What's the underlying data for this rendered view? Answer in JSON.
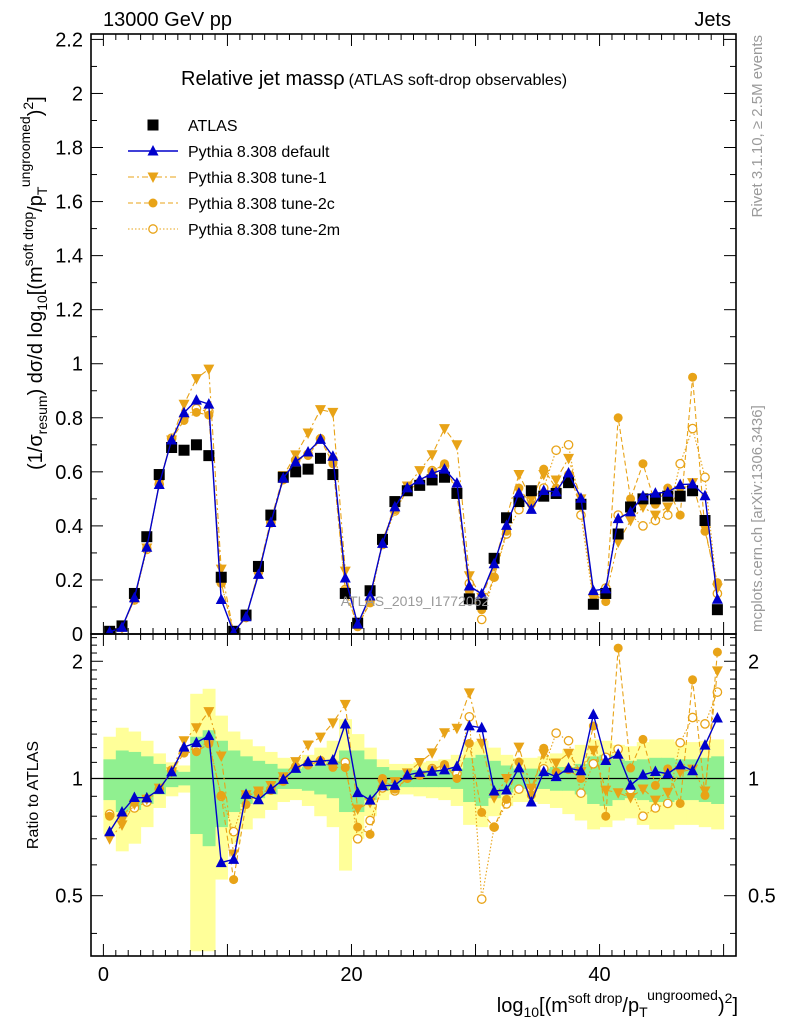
{
  "header": {
    "energy_label": "13000 GeV pp",
    "category_label": "Jets"
  },
  "side_labels": {
    "rivet": "Rivet 3.1.10, ≥ 2.5M events",
    "mcplots": "mcplots.cern.ch [arXiv:1306.3436]"
  },
  "chart_data": [
    {
      "type": "line",
      "title": "Relative jet massρ",
      "subtitle": "(ATLAS soft-drop observables)",
      "watermark": "ATLAS_2019_I1772062",
      "ylabel": "(1/σ_resum) dσ/d log10[(m^soft drop/pT^ungroomed)^2]",
      "xlim": [
        -1,
        51
      ],
      "ylim": [
        0,
        2.22
      ],
      "yticks": [
        "0",
        "0.2",
        "0.4",
        "0.6",
        "0.8",
        "1",
        "1.2",
        "1.4",
        "1.6",
        "1.8",
        "2",
        "2.2"
      ],
      "legend_position": "top-left",
      "series": [
        {
          "name": "ATLAS",
          "marker": "square",
          "color": "#000000",
          "x": [
            0.5,
            1.5,
            2.5,
            3.5,
            4.5,
            5.5,
            6.5,
            7.5,
            8.5,
            9.5,
            10.5,
            11.5,
            12.5,
            13.5,
            14.5,
            15.5,
            16.5,
            17.5,
            18.5,
            19.5,
            20.5,
            21.5,
            22.5,
            23.5,
            24.5,
            25.5,
            26.5,
            27.5,
            28.5,
            29.5,
            30.5,
            31.5,
            32.5,
            33.5,
            34.5,
            35.5,
            36.5,
            37.5,
            38.5,
            39.5,
            40.5,
            41.5,
            42.5,
            43.5,
            44.5,
            45.5,
            46.5,
            47.5,
            48.5,
            49.5
          ],
          "y": [
            0.01,
            0.03,
            0.15,
            0.36,
            0.59,
            0.69,
            0.68,
            0.7,
            0.66,
            0.21,
            0.01,
            0.07,
            0.25,
            0.44,
            0.58,
            0.6,
            0.61,
            0.65,
            0.59,
            0.15,
            0.04,
            0.16,
            0.35,
            0.49,
            0.53,
            0.55,
            0.57,
            0.58,
            0.52,
            0.13,
            0.11,
            0.28,
            0.43,
            0.49,
            0.53,
            0.51,
            0.52,
            0.56,
            0.48,
            0.11,
            0.15,
            0.37,
            0.47,
            0.5,
            0.5,
            0.51,
            0.51,
            0.53,
            0.42,
            0.09
          ]
        },
        {
          "name": "Pythia 8.308 default",
          "marker": "triangle",
          "color": "#0000cc",
          "x": [
            0.5,
            1.5,
            2.5,
            3.5,
            4.5,
            5.5,
            6.5,
            7.5,
            8.5,
            9.5,
            10.5,
            11.5,
            12.5,
            13.5,
            14.5,
            15.5,
            16.5,
            17.5,
            18.5,
            19.5,
            20.5,
            21.5,
            22.5,
            23.5,
            24.5,
            25.5,
            26.5,
            27.5,
            28.5,
            29.5,
            30.5,
            31.5,
            32.5,
            33.5,
            34.5,
            35.5,
            36.5,
            37.5,
            38.5,
            39.5,
            40.5,
            41.5,
            42.5,
            43.5,
            44.5,
            45.5,
            46.5,
            47.5,
            48.5,
            49.5
          ],
          "y": [
            0.0073,
            0.0246,
            0.134,
            0.3211,
            0.5532,
            0.7176,
            0.8186,
            0.8654,
            0.8506,
            0.1277,
            0.0062,
            0.0637,
            0.2205,
            0.4127,
            0.5768,
            0.637,
            0.6734,
            0.7202,
            0.6579,
            0.207,
            0.0368,
            0.1408,
            0.3353,
            0.4705,
            0.5406,
            0.5703,
            0.5943,
            0.6102,
            0.5584,
            0.1775,
            0.1485,
            0.26,
            0.4017,
            0.5218,
            0.4611,
            0.5309,
            0.5257,
            0.5955,
            0.5024,
            0.1606,
            0.1668,
            0.4269,
            0.4517,
            0.5108,
            0.5211,
            0.5245,
            0.5528,
            0.5548,
            0.5115,
            0.1287
          ]
        },
        {
          "name": "Pythia 8.308 tune-1",
          "marker": "triangle-down",
          "color": "#e8a317",
          "x": [
            0.5,
            1.5,
            2.5,
            3.5,
            4.5,
            5.5,
            6.5,
            7.5,
            8.5,
            9.5,
            10.5,
            11.5,
            12.5,
            13.5,
            14.5,
            15.5,
            16.5,
            17.5,
            18.5,
            19.5,
            20.5,
            21.5,
            22.5,
            23.5,
            24.5,
            25.5,
            26.5,
            27.5,
            28.5,
            29.5,
            30.5,
            31.5,
            32.5,
            33.5,
            34.5,
            35.5,
            36.5,
            37.5,
            38.5,
            39.5,
            40.5,
            41.5,
            42.5,
            43.5,
            44.5,
            45.5,
            46.5,
            47.5,
            48.5,
            49.5
          ],
          "y": [
            0.007,
            0.0228,
            0.1289,
            0.3184,
            0.5571,
            0.7176,
            0.85,
            0.945,
            0.98,
            0.2399,
            0.0064,
            0.0636,
            0.2321,
            0.422,
            0.5858,
            0.6627,
            0.7436,
            0.83,
            0.82,
            0.2325,
            0.0334,
            0.1388,
            0.3386,
            0.4811,
            0.5477,
            0.6047,
            0.6631,
            0.76,
            0.7,
            0.2157,
            0.1355,
            0.25,
            0.43,
            0.59,
            0.5,
            0.59,
            0.57,
            0.65,
            0.5,
            0.13,
            0.14,
            0.34,
            0.42,
            0.47,
            0.44,
            0.47,
            0.53,
            0.56,
            0.39,
            0.17
          ]
        },
        {
          "name": "Pythia 8.308 tune-2c",
          "marker": "circle",
          "color": "#e8a317",
          "x": [
            0.5,
            1.5,
            2.5,
            3.5,
            4.5,
            5.5,
            6.5,
            7.5,
            8.5,
            9.5,
            10.5,
            11.5,
            12.5,
            13.5,
            14.5,
            15.5,
            16.5,
            17.5,
            18.5,
            19.5,
            20.5,
            21.5,
            22.5,
            23.5,
            24.5,
            25.5,
            26.5,
            27.5,
            28.5,
            29.5,
            30.5,
            31.5,
            32.5,
            33.5,
            34.5,
            35.5,
            36.5,
            37.5,
            38.5,
            39.5,
            40.5,
            41.5,
            42.5,
            43.5,
            44.5,
            45.5,
            46.5,
            47.5,
            48.5,
            49.5
          ],
          "y": [
            0.008,
            0.024,
            0.13,
            0.32,
            0.555,
            0.72,
            0.79,
            0.82,
            0.81,
            0.19,
            0.0055,
            0.06,
            0.23,
            0.41,
            0.57,
            0.64,
            0.66,
            0.72,
            0.63,
            0.16,
            0.03,
            0.115,
            0.35,
            0.46,
            0.53,
            0.56,
            0.6,
            0.63,
            0.52,
            0.16,
            0.09,
            0.21,
            0.38,
            0.54,
            0.48,
            0.61,
            0.54,
            0.59,
            0.48,
            0.15,
            0.12,
            0.8,
            0.5,
            0.63,
            0.48,
            0.54,
            0.44,
            0.95,
            0.38,
            0.19
          ]
        },
        {
          "name": "Pythia 8.308 tune-2m",
          "marker": "circle-open",
          "color": "#e8a317",
          "x": [
            0.5,
            1.5,
            2.5,
            3.5,
            4.5,
            5.5,
            6.5,
            7.5,
            8.5,
            9.5,
            10.5,
            11.5,
            12.5,
            13.5,
            14.5,
            15.5,
            16.5,
            17.5,
            18.5,
            19.5,
            20.5,
            21.5,
            22.5,
            23.5,
            24.5,
            25.5,
            26.5,
            27.5,
            28.5,
            29.5,
            30.5,
            31.5,
            32.5,
            33.5,
            34.5,
            35.5,
            36.5,
            37.5,
            38.5,
            39.5,
            40.5,
            41.5,
            42.5,
            43.5,
            44.5,
            45.5,
            46.5,
            47.5,
            48.5,
            49.5
          ],
          "y": [
            0.0081,
            0.024,
            0.126,
            0.3132,
            0.5535,
            0.7245,
            0.8023,
            0.8337,
            0.8224,
            0.189,
            0.0073,
            0.0634,
            0.2296,
            0.4117,
            0.582,
            0.643,
            0.6653,
            0.7224,
            0.6463,
            0.165,
            0.028,
            0.1248,
            0.3311,
            0.4553,
            0.531,
            0.561,
            0.6044,
            0.622,
            0.5348,
            0.1872,
            0.0539,
            0.21,
            0.37,
            0.46,
            0.5,
            0.54,
            0.68,
            0.7,
            0.44,
            0.12,
            0.17,
            0.44,
            0.44,
            0.4,
            0.42,
            0.44,
            0.63,
            0.76,
            0.58,
            0.15
          ]
        }
      ]
    },
    {
      "type": "line",
      "ylabel": "Ratio to ATLAS",
      "xlabel": "log10[(m^soft drop/pT^ungroomed)^2]",
      "xlim": [
        -1,
        51
      ],
      "ylim": [
        0.35,
        2.35
      ],
      "xticks": [
        "0",
        "20",
        "40"
      ],
      "yticks": [
        "0.5",
        "1",
        "2"
      ],
      "reference_line": 1,
      "bands": {
        "inner_color": "#90f090",
        "outer_color": "#ffff99",
        "inner": [
          0.12,
          0.18,
          0.17,
          0.14,
          0.09,
          0.05,
          0.04,
          0.28,
          0.33,
          0.25,
          0.18,
          0.14,
          0.11,
          0.09,
          0.06,
          0.06,
          0.07,
          0.09,
          0.11,
          0.18,
          0.18,
          0.12,
          0.07,
          0.05,
          0.05,
          0.05,
          0.05,
          0.05,
          0.06,
          0.13,
          0.15,
          0.11,
          0.08,
          0.06,
          0.06,
          0.06,
          0.07,
          0.07,
          0.09,
          0.14,
          0.15,
          0.12,
          0.11,
          0.12,
          0.13,
          0.13,
          0.12,
          0.12,
          0.13,
          0.14
        ],
        "outer": [
          0.28,
          0.35,
          0.32,
          0.25,
          0.16,
          0.1,
          0.08,
          0.65,
          0.7,
          0.45,
          0.32,
          0.26,
          0.21,
          0.17,
          0.13,
          0.12,
          0.15,
          0.2,
          0.25,
          0.42,
          0.3,
          0.2,
          0.12,
          0.09,
          0.09,
          0.1,
          0.11,
          0.12,
          0.15,
          0.24,
          0.25,
          0.2,
          0.15,
          0.13,
          0.13,
          0.14,
          0.16,
          0.19,
          0.22,
          0.26,
          0.25,
          0.22,
          0.21,
          0.24,
          0.26,
          0.26,
          0.24,
          0.24,
          0.25,
          0.26
        ]
      }
    }
  ]
}
